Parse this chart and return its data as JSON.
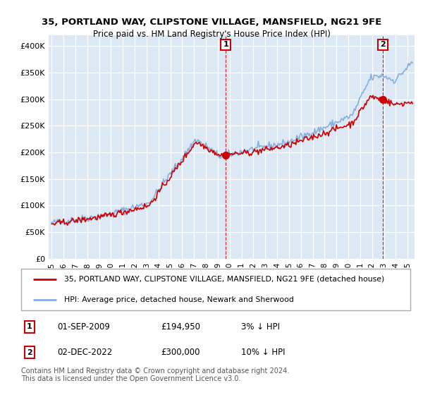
{
  "title1": "35, PORTLAND WAY, CLIPSTONE VILLAGE, MANSFIELD, NG21 9FE",
  "title2": "Price paid vs. HM Land Registry's House Price Index (HPI)",
  "plot_bg_color": "#dce9f5",
  "legend_line1": "35, PORTLAND WAY, CLIPSTONE VILLAGE, MANSFIELD, NG21 9FE (detached house)",
  "legend_line2": "HPI: Average price, detached house, Newark and Sherwood",
  "sale1": {
    "date": "01-SEP-2009",
    "price": 194950,
    "pct": "3%",
    "dir": "↓"
  },
  "sale2": {
    "date": "02-DEC-2022",
    "price": 300000,
    "pct": "10%",
    "dir": "↓"
  },
  "footer": "Contains HM Land Registry data © Crown copyright and database right 2024.\nThis data is licensed under the Open Government Licence v3.0.",
  "red_color": "#cc0000",
  "blue_color": "#88aedd",
  "ylim_min": 0,
  "ylim_max": 420000,
  "n_months": 366,
  "hpi_knots_t": [
    0,
    0.15,
    0.27,
    0.4,
    0.467,
    0.55,
    0.65,
    0.75,
    0.833,
    0.883,
    0.917,
    0.95,
    1.0
  ],
  "hpi_knots_v": [
    67000,
    82000,
    105000,
    225000,
    192000,
    205000,
    218000,
    245000,
    270000,
    340000,
    345000,
    335000,
    370000
  ],
  "red_knots_t": [
    0,
    0.15,
    0.27,
    0.4,
    0.467,
    0.55,
    0.65,
    0.75,
    0.833,
    0.883,
    0.917,
    0.95,
    1.0
  ],
  "red_knots_v": [
    65000,
    80000,
    100000,
    220000,
    194950,
    200000,
    212000,
    235000,
    255000,
    305000,
    300000,
    290000,
    295000
  ],
  "idx1": 176,
  "idx2": 335,
  "sale1_val": 194950,
  "sale2_val": 300000,
  "start_year": 1995,
  "end_year": 2025
}
